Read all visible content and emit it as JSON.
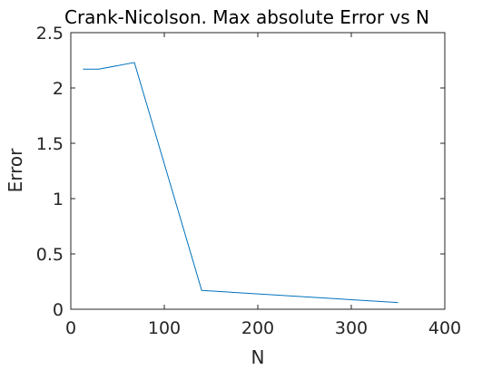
{
  "chart_data": {
    "type": "line",
    "title": "Crank-Nicolson. Max absolute Error vs N",
    "xlabel": "N",
    "ylabel": "Error",
    "xlim": [
      0,
      400
    ],
    "ylim": [
      0,
      2.5
    ],
    "xticks": [
      0,
      100,
      200,
      300,
      400
    ],
    "xtick_labels": [
      "0",
      "100",
      "200",
      "300",
      "400"
    ],
    "yticks": [
      0,
      0.5,
      1,
      1.5,
      2,
      2.5
    ],
    "ytick_labels": [
      "0",
      "0.5",
      "1",
      "1.5",
      "2",
      "2.5"
    ],
    "grid": false,
    "series": [
      {
        "color": "#0072BD",
        "x": [
          13,
          30,
          68,
          140,
          350
        ],
        "y": [
          2.17,
          2.17,
          2.23,
          0.17,
          0.06
        ]
      }
    ]
  }
}
